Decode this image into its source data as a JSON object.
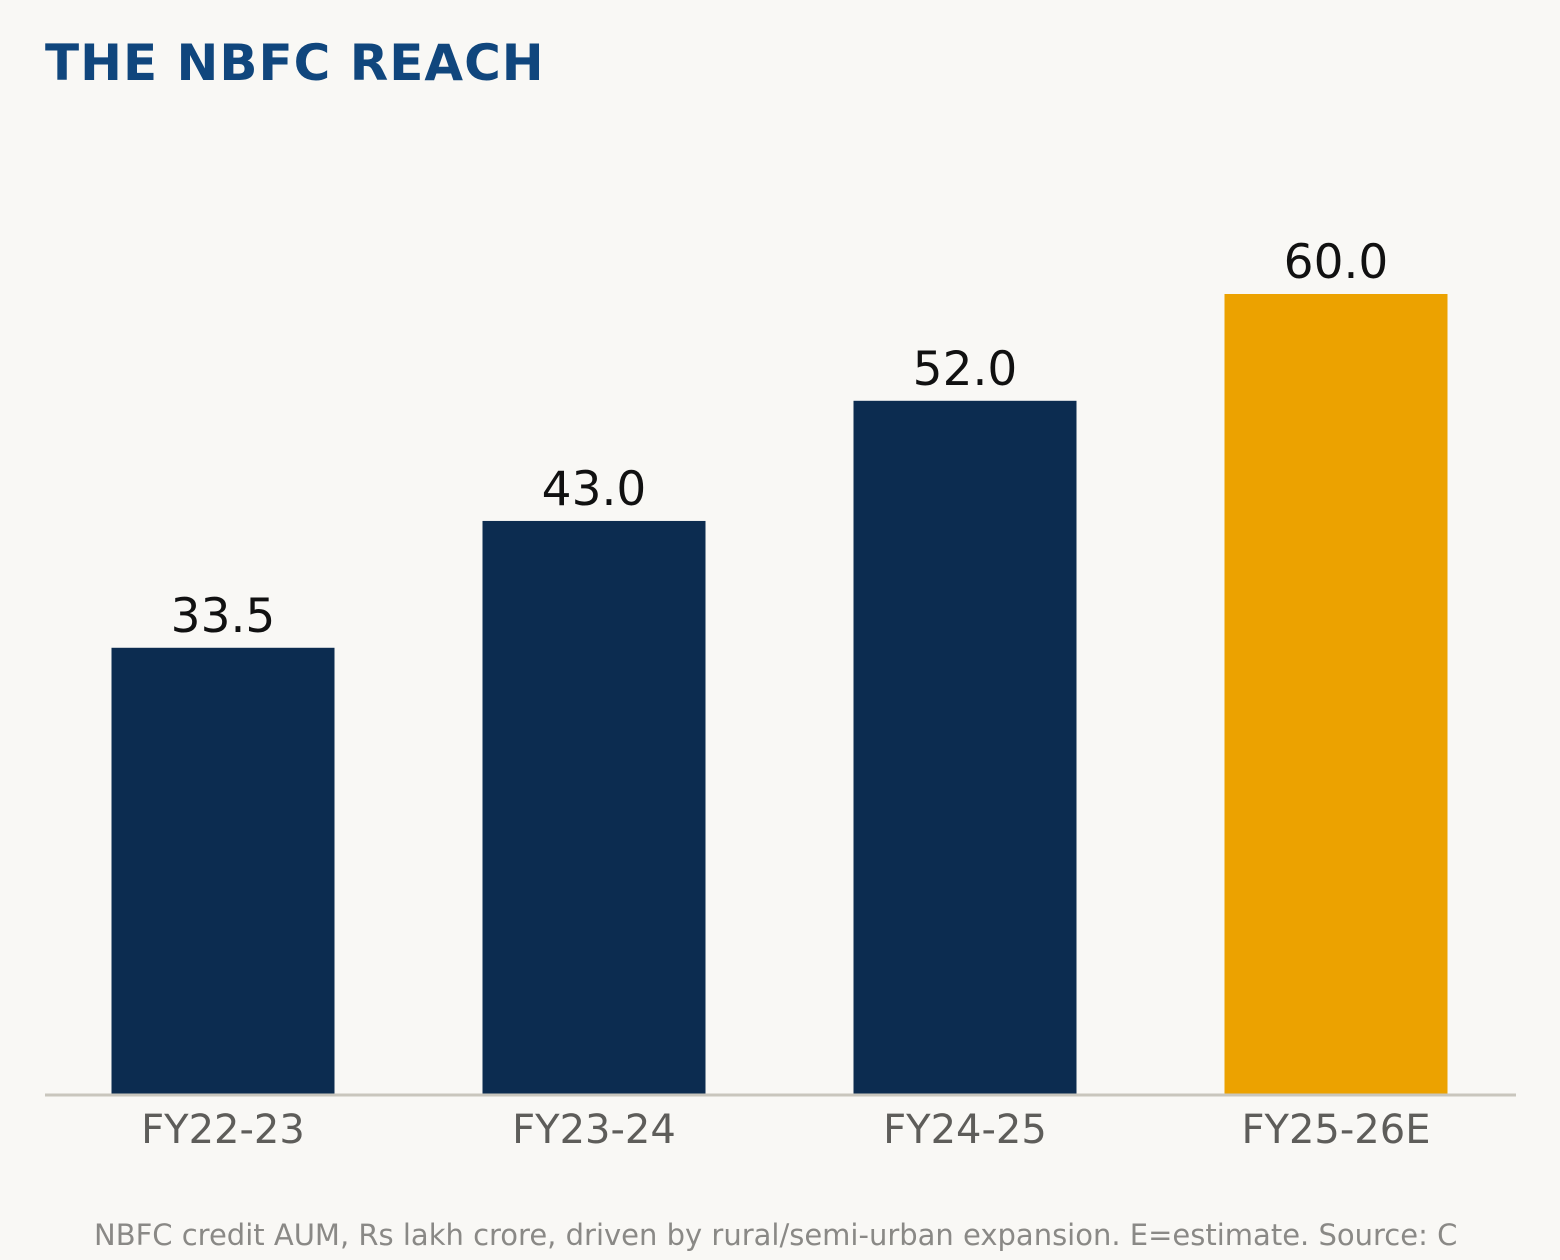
{
  "colors": {
    "title": "#10467d",
    "bar": "#0c2c50",
    "highlight": "#eca200",
    "axis": "#c9c6bd",
    "tick_text": "#5e5d5a",
    "value_text": "#111111",
    "footnote": "#8a8986",
    "background": "#f9f8f5"
  },
  "chart_data": {
    "type": "bar",
    "title": "THE NBFC REACH",
    "categories": [
      "FY22-23",
      "FY23-24",
      "FY24-25",
      "FY25-26E"
    ],
    "values": [
      33.5,
      43.0,
      52.0,
      60.0
    ],
    "value_labels": [
      "33.5",
      "43.0",
      "52.0",
      "60.0"
    ],
    "highlighted_category": "FY25-26E",
    "ylim": [
      0,
      60
    ],
    "grid": false,
    "xlabel": "",
    "ylabel": ""
  },
  "footnote": "NBFC credit AUM, Rs lakh crore, driven by rural/semi-urban expansion. E=estimate. Source: C"
}
